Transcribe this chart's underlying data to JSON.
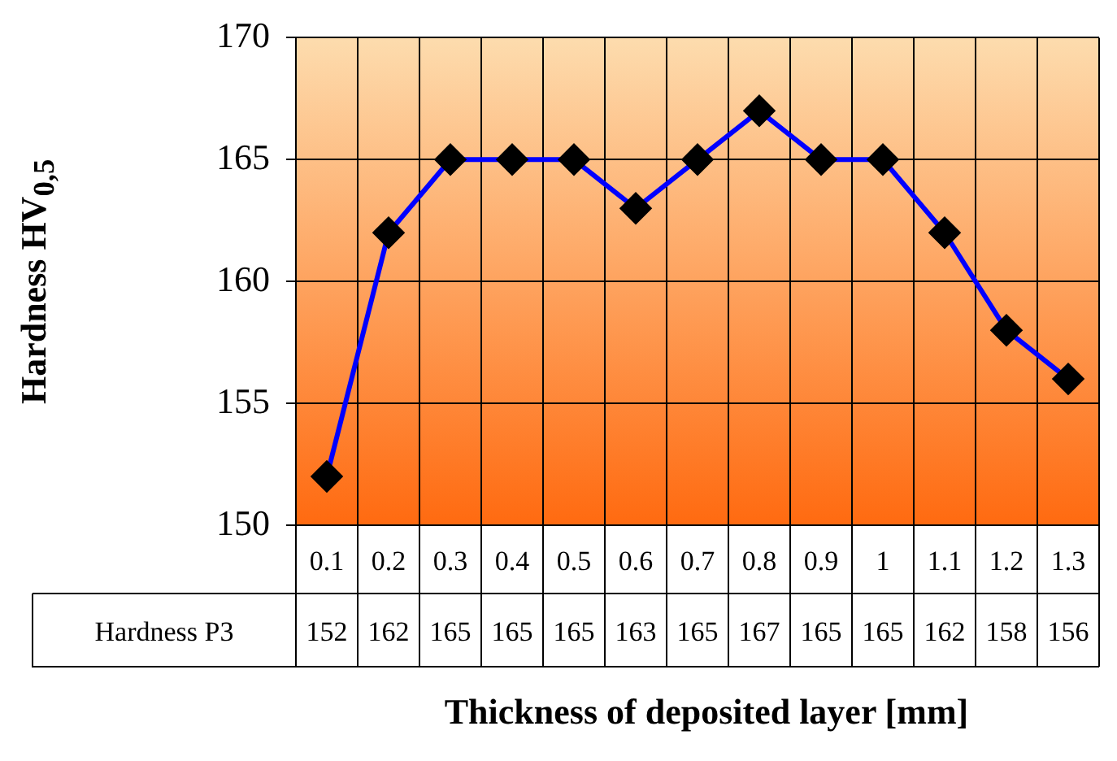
{
  "chart_data": {
    "type": "line",
    "xlabel": "Thickness of deposited layer [mm]",
    "ylabel": "Hardness HV$_{0,5}$",
    "categories": [
      "0.1",
      "0.2",
      "0.3",
      "0.4",
      "0.5",
      "0.6",
      "0.7",
      "0.8",
      "0.9",
      "1",
      "1.1",
      "1.2",
      "1.3"
    ],
    "series": [
      {
        "name": "Hardness P3",
        "color": "#0000ff",
        "values": [
          152,
          162,
          165,
          165,
          165,
          163,
          165,
          167,
          165,
          165,
          162,
          158,
          156
        ]
      }
    ],
    "ylim": [
      150,
      170
    ],
    "yticks": [
      150,
      155,
      160,
      165,
      170
    ],
    "grid": true,
    "marker": "diamond",
    "line_style": "solid",
    "data_labels": true
  }
}
